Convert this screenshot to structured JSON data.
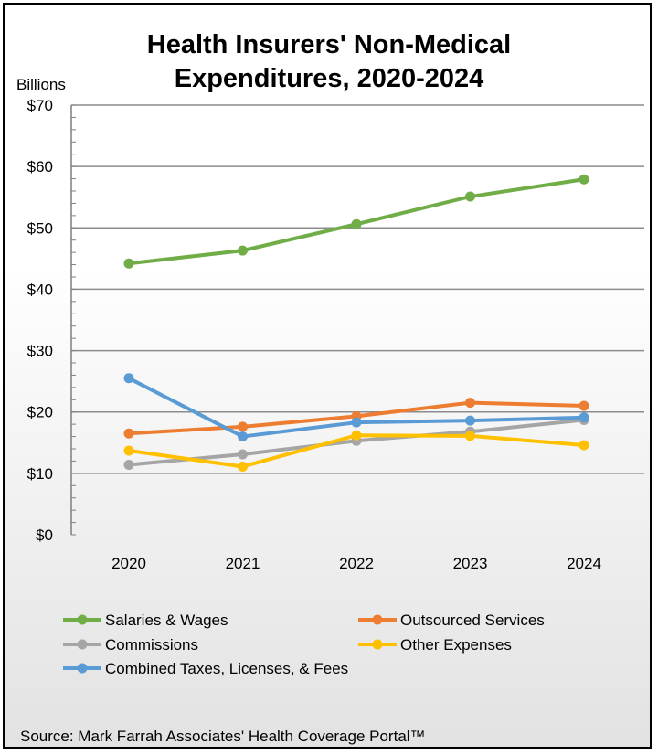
{
  "chart_data": {
    "type": "line",
    "title_line1": "Health Insurers' Non-Medical",
    "title_line2": "Expenditures, 2020-2024",
    "ylabel": "Billions",
    "categories": [
      "2020",
      "2021",
      "2022",
      "2023",
      "2024"
    ],
    "ylim": [
      0,
      70
    ],
    "yticks": [
      0,
      10,
      20,
      30,
      40,
      50,
      60,
      70
    ],
    "ytick_labels": [
      "$0",
      "$10",
      "$20",
      "$30",
      "$40",
      "$50",
      "$60",
      "$70"
    ],
    "grid": true,
    "legend_position": "bottom",
    "series": [
      {
        "name": "Salaries & Wages",
        "color": "#70ad47",
        "values": [
          44.2,
          46.3,
          50.6,
          55.1,
          57.9
        ]
      },
      {
        "name": "Outsourced Services",
        "color": "#ed7d31",
        "values": [
          16.5,
          17.6,
          19.3,
          21.5,
          21.0
        ]
      },
      {
        "name": "Commissions",
        "color": "#a5a5a5",
        "values": [
          11.4,
          13.1,
          15.3,
          16.8,
          18.7
        ]
      },
      {
        "name": "Other Expenses",
        "color": "#ffc000",
        "values": [
          13.7,
          11.1,
          16.2,
          16.1,
          14.6
        ]
      },
      {
        "name": "Combined Taxes, Licenses, & Fees",
        "color": "#5b9bd5",
        "values": [
          25.5,
          16.0,
          18.3,
          18.6,
          19.1
        ]
      }
    ]
  },
  "source": "Source: Mark Farrah Associates' Health Coverage Portal™"
}
